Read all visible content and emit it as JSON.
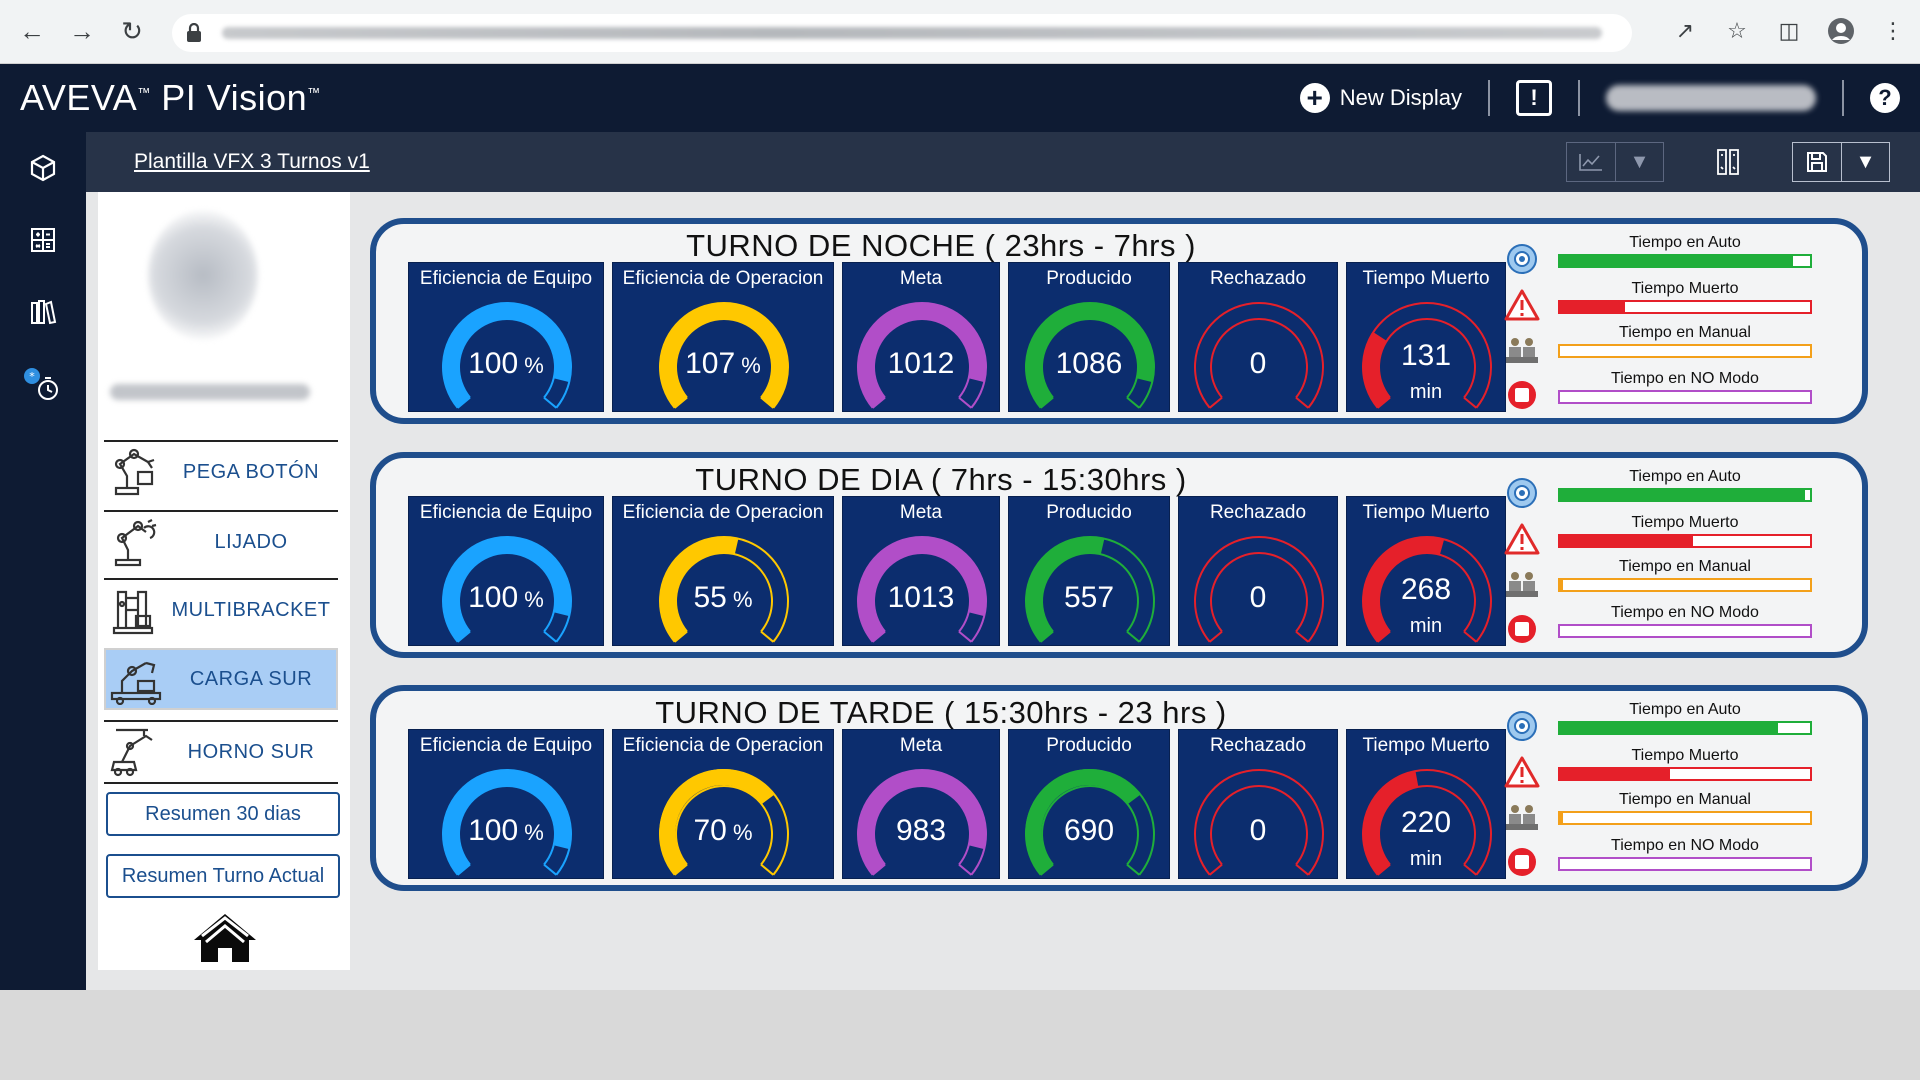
{
  "app": {
    "brand": "AVEVA",
    "brand_product": "PI Vision",
    "breadcrumb": "Plantilla VFX 3 Turnos v1"
  },
  "header": {
    "new_display": "New Display"
  },
  "sidebar": {
    "menu": [
      {
        "label": "PEGA BOTÓN",
        "icon": "robot-arm-icon"
      },
      {
        "label": "LIJADO",
        "icon": "sanding-robot-icon"
      },
      {
        "label": "MULTIBRACKET",
        "icon": "bracket-machine-icon"
      },
      {
        "label": "CARGA SUR",
        "icon": "loading-robot-icon",
        "selected": true
      },
      {
        "label": "HORNO SUR",
        "icon": "oven-robot-icon"
      }
    ],
    "summary_30": "Resumen 30 dias",
    "summary_shift": "Resumen Turno Actual"
  },
  "colors": {
    "navy": "#0e1b33",
    "tile": "#0c2d6e",
    "blue": "#1aa3ff",
    "yellow": "#ffc800",
    "purple": "#b14ec8",
    "green": "#1fae3a",
    "red": "#e5202a",
    "orange": "#f3a01a"
  },
  "tile_labels": {
    "efficiency_equipment": "Eficiencia de Equipo",
    "efficiency_operation": "Eficiencia de Operacion",
    "goal": "Meta",
    "produced": "Producido",
    "rejected": "Rechazado",
    "downtime": "Tiempo Muerto"
  },
  "status_labels": {
    "auto": "Tiempo en Auto",
    "downtime": "Tiempo Muerto",
    "manual": "Tiempo en Manual",
    "no_mode": "Tiempo en NO Modo"
  },
  "units": {
    "percent": "%",
    "minutes": "min"
  },
  "shifts": [
    {
      "title": "TURNO DE NOCHE ( 23hrs - 7hrs )",
      "gauges": {
        "eff_equipo": {
          "value": "100",
          "fraction": 0.9
        },
        "eff_operacion": {
          "value": "107",
          "fraction": 1.0
        },
        "meta": {
          "value": "1012",
          "fraction": 0.9
        },
        "producido": {
          "value": "1086",
          "fraction": 0.9
        },
        "rechazado": {
          "value": "0",
          "fraction": 0.0
        },
        "tiempo_muerto": {
          "value": "131",
          "fraction": 0.28
        }
      },
      "status": {
        "auto": 0.93,
        "downtime": 0.26,
        "manual": 0.0,
        "no_mode": 0.0
      }
    },
    {
      "title": "TURNO DE DIA ( 7hrs - 15:30hrs )",
      "gauges": {
        "eff_equipo": {
          "value": "100",
          "fraction": 0.9
        },
        "eff_operacion": {
          "value": "55",
          "fraction": 0.55
        },
        "meta": {
          "value": "1013",
          "fraction": 0.9
        },
        "producido": {
          "value": "557",
          "fraction": 0.55
        },
        "rechazado": {
          "value": "0",
          "fraction": 0.0
        },
        "tiempo_muerto": {
          "value": "268",
          "fraction": 0.56
        }
      },
      "status": {
        "auto": 0.98,
        "downtime": 0.53,
        "manual": 0.01,
        "no_mode": 0.0
      }
    },
    {
      "title": "TURNO DE TARDE ( 15:30hrs - 23 hrs )",
      "gauges": {
        "eff_equipo": {
          "value": "100",
          "fraction": 0.9
        },
        "eff_operacion": {
          "value": "70",
          "fraction": 0.7
        },
        "meta": {
          "value": "983",
          "fraction": 0.9
        },
        "producido": {
          "value": "690",
          "fraction": 0.7
        },
        "rechazado": {
          "value": "0",
          "fraction": 0.0
        },
        "tiempo_muerto": {
          "value": "220",
          "fraction": 0.46
        }
      },
      "status": {
        "auto": 0.87,
        "downtime": 0.44,
        "manual": 0.01,
        "no_mode": 0.0
      }
    }
  ]
}
